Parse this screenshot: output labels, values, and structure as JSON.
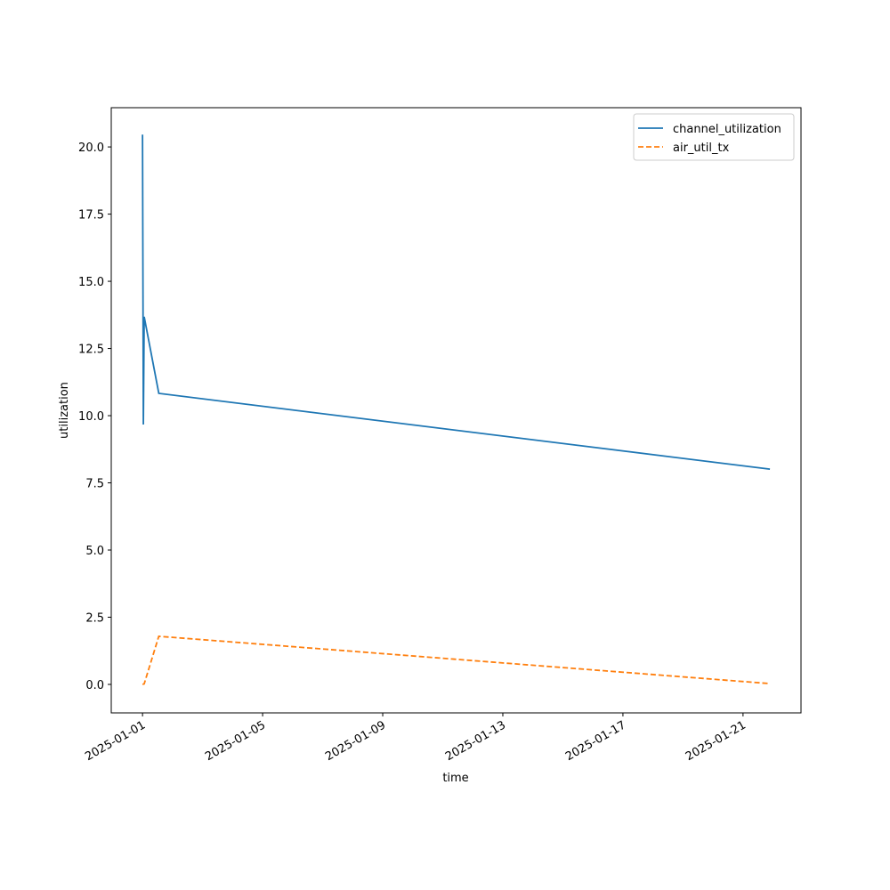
{
  "chart_data": {
    "type": "line",
    "x_label": "time",
    "y_label": "utilization",
    "x": [
      "2025-01-01T00:00",
      "2025-01-01T00:40",
      "2025-01-01T01:20",
      "2025-01-01T13:00",
      "2025-01-21T21:30"
    ],
    "series": [
      {
        "name": "channel_utilization",
        "color": "#1f77b4",
        "linestyle": "solid",
        "values": [
          20.46,
          9.67,
          13.68,
          10.83,
          8.01
        ]
      },
      {
        "name": "air_util_tx",
        "color": "#ff7f0e",
        "linestyle": "dashed",
        "values": [
          0.0,
          0.01,
          0.02,
          1.79,
          0.03
        ]
      }
    ],
    "xlim": [
      "2024-12-30T23:00",
      "2025-01-22T22:20"
    ],
    "xticks": [
      "2025-01-01",
      "2025-01-05",
      "2025-01-09",
      "2025-01-13",
      "2025-01-17",
      "2025-01-21"
    ],
    "ylim": [
      -1.06,
      21.46
    ],
    "yticks": [
      {
        "value": 0,
        "label": "0.0"
      },
      2.5,
      {
        "value": 5,
        "label": "5.0"
      },
      7.5,
      {
        "value": 10,
        "label": "10.0"
      },
      12.5,
      {
        "value": 15,
        "label": "15.0"
      },
      17.5,
      {
        "value": 20,
        "label": "20.0"
      }
    ],
    "grid": false,
    "legend": "upper right"
  }
}
